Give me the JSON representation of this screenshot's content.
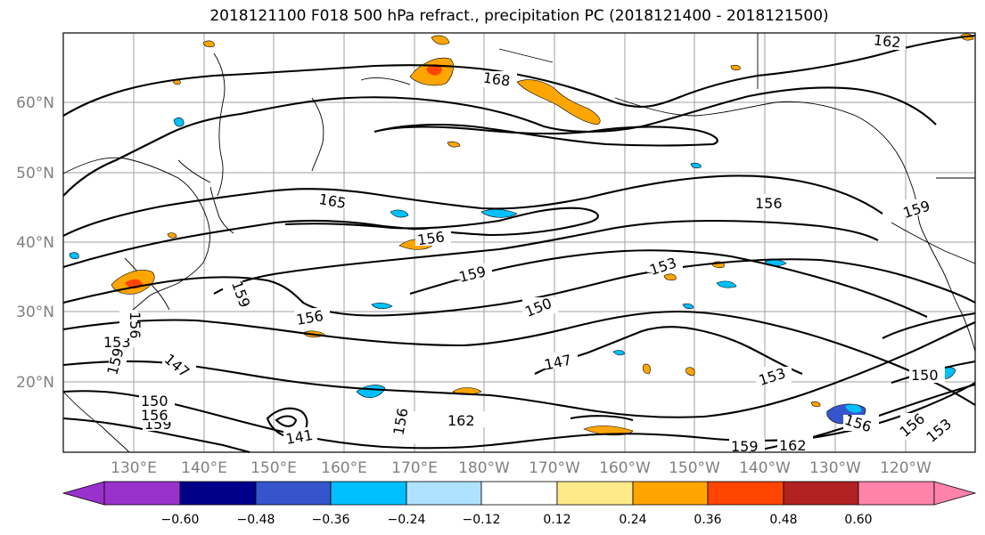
{
  "title": "2018121100 F018 500 hPa refract., precipitation PC (2018121400 - 2018121500)",
  "lat_labels": [
    "60°N",
    "50°N",
    "40°N",
    "30°N",
    "20°N"
  ],
  "lon_labels": [
    "130°E",
    "140°E",
    "150°E",
    "160°E",
    "170°E",
    "180°W",
    "170°W",
    "160°W",
    "150°W",
    "140°W",
    "130°W",
    "120°W"
  ],
  "colorbar": {
    "ticks": [
      "−0.60",
      "−0.48",
      "−0.36",
      "−0.24",
      "−0.12",
      "0.12",
      "0.24",
      "0.36",
      "0.48",
      "0.60"
    ],
    "colors": [
      "#9932cc",
      "#00008b",
      "#3655cc",
      "#00bfff",
      "#b0e2ff",
      "#ffffff",
      "#ffea8a",
      "#ffa500",
      "#ff4500",
      "#b22222",
      "#ff82ab"
    ]
  },
  "contour_labels": [
    "168",
    "165",
    "162",
    "159",
    "156",
    "153",
    "150",
    "147",
    "141"
  ],
  "colors": {
    "contour": "#000000",
    "grid": "#a0a0a0",
    "axis_text": "#808080"
  }
}
